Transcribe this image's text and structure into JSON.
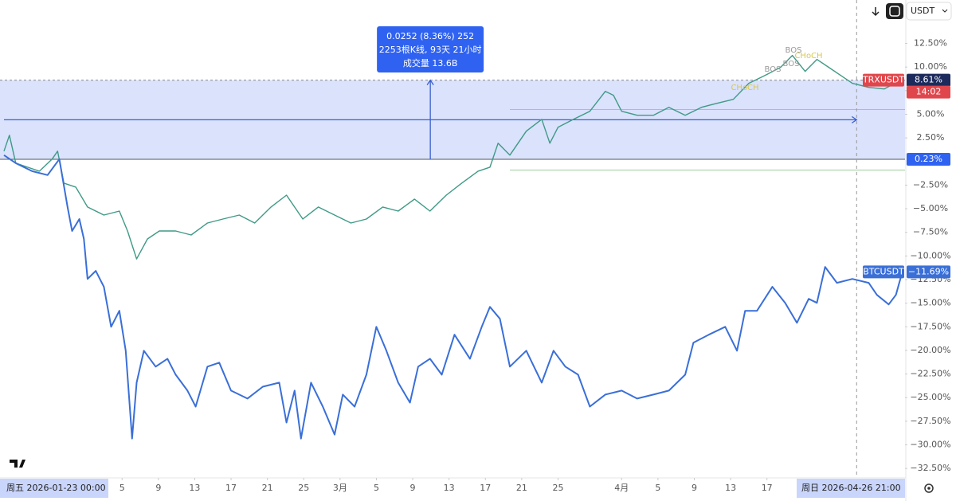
{
  "chart_data": {
    "type": "line",
    "xlim": [
      0,
      99.2
    ],
    "ylim": [
      -33.5,
      17.1
    ],
    "xticks": [
      {
        "value": 13,
        "label": "5"
      },
      {
        "value": 17,
        "label": "9"
      },
      {
        "value": 21,
        "label": "13"
      },
      {
        "value": 25,
        "label": "17"
      },
      {
        "value": 29,
        "label": "21"
      },
      {
        "value": 33,
        "label": "25"
      },
      {
        "value": 37,
        "label": "3月"
      },
      {
        "value": 41,
        "label": "5"
      },
      {
        "value": 45,
        "label": "9"
      },
      {
        "value": 49,
        "label": "13"
      },
      {
        "value": 53,
        "label": "17"
      },
      {
        "value": 57,
        "label": "21"
      },
      {
        "value": 61,
        "label": "25"
      },
      {
        "value": 68,
        "label": "4月"
      },
      {
        "value": 72,
        "label": "5"
      },
      {
        "value": 76,
        "label": "9"
      },
      {
        "value": 80,
        "label": "13"
      },
      {
        "value": 84,
        "label": "17"
      }
    ],
    "yticks": [
      {
        "value": 12.5,
        "label": "12.50%"
      },
      {
        "value": 10,
        "label": "10.00%"
      },
      {
        "value": 7.5,
        "label": "7.50%"
      },
      {
        "value": 5,
        "label": "5.00%"
      },
      {
        "value": 2.5,
        "label": "2.50%"
      },
      {
        "value": -2.5,
        "label": "−2.50%"
      },
      {
        "value": -5,
        "label": "−5.00%"
      },
      {
        "value": -7.5,
        "label": "−7.50%"
      },
      {
        "value": -10,
        "label": "−10.00%"
      },
      {
        "value": -12.5,
        "label": "−12.50%"
      },
      {
        "value": -15,
        "label": "−15.00%"
      },
      {
        "value": -17.5,
        "label": "−17.50%"
      },
      {
        "value": -20,
        "label": "−20.00%"
      },
      {
        "value": -22.5,
        "label": "−22.50%"
      },
      {
        "value": -25,
        "label": "−25.00%"
      },
      {
        "value": -27.5,
        "label": "−27.50%"
      },
      {
        "value": -30,
        "label": "−30.00%"
      },
      {
        "value": -32.5,
        "label": "−32.50%"
      }
    ],
    "grid": false,
    "crosshair_start": "周五 2026-01-23  00:00",
    "crosshair_end": {
      "value": 93.875,
      "label": "周日 2026-04-26  21:00"
    },
    "range_box": {
      "low": {
        "value": 0.23,
        "label": "0.23%"
      },
      "high": 8.61
    },
    "measure": [
      "0.0252 (8.36%) 252",
      "2253根K线, 93天 21小时",
      "成交量 13.6B"
    ],
    "countdown": "14:02",
    "currency": "USDT",
    "annotations": [
      "BOS",
      "BOS",
      "BOS",
      "CHoCH",
      "CHoCH"
    ],
    "series": [
      {
        "name": "TRXUSDT",
        "color": "#3f9a86",
        "label_color": "#e0474c",
        "last_label": "8.61%",
        "x": [
          0,
          0.6,
          1.3,
          2.6,
          3.9,
          5.3,
          5.9,
          6.6,
          7.9,
          9.2,
          11.0,
          12.7,
          13.6,
          14.6,
          15.8,
          17.1,
          18.9,
          20.6,
          22.4,
          24.1,
          25.9,
          27.6,
          29.4,
          31.1,
          32.9,
          34.6,
          36.4,
          38.2,
          39.9,
          41.7,
          43.4,
          45.2,
          46.9,
          48.7,
          50.4,
          52.2,
          53.5,
          54.4,
          55.7,
          57.5,
          59.2,
          60.1,
          61.0,
          62.7,
          64.5,
          66.2,
          67.1,
          68.0,
          69.7,
          71.5,
          73.2,
          75.0,
          76.8,
          78.5,
          80.3,
          82.0,
          83.8,
          85.5,
          86.8,
          88.2,
          89.5,
          90.8,
          92.1,
          93.4,
          95.2,
          96.9,
          98.7
        ],
        "values": [
          1.09,
          2.78,
          -0.17,
          -0.6,
          -1.02,
          0.25,
          1.09,
          -2.29,
          -2.71,
          -4.82,
          -5.67,
          -5.25,
          -7.36,
          -10.32,
          -8.2,
          -7.36,
          -7.36,
          -7.78,
          -6.51,
          -6.09,
          -5.67,
          -6.51,
          -4.82,
          -3.56,
          -6.09,
          -4.82,
          -5.67,
          -6.51,
          -6.09,
          -4.82,
          -5.25,
          -3.98,
          -5.25,
          -3.56,
          -2.29,
          -1.02,
          -0.6,
          1.94,
          0.67,
          3.21,
          4.47,
          1.94,
          3.63,
          4.47,
          5.32,
          7.43,
          7.01,
          5.32,
          4.9,
          4.9,
          5.74,
          4.9,
          5.74,
          6.16,
          6.58,
          8.28,
          9.12,
          9.97,
          11.23,
          9.54,
          10.81,
          9.97,
          9.12,
          8.28,
          7.85,
          7.68,
          8.61
        ]
      },
      {
        "name": "BTCUSDT",
        "color": "#3a6fd8",
        "label_color": "#3a6fd8",
        "last_label": "−11.69%",
        "x": [
          0,
          1.3,
          3.1,
          4.8,
          6.1,
          7.0,
          7.5,
          8.3,
          8.8,
          9.2,
          10.1,
          11.0,
          11.8,
          12.7,
          13.4,
          14.1,
          14.6,
          15.4,
          16.7,
          18.0,
          18.9,
          20.2,
          21.1,
          22.4,
          23.7,
          25.0,
          26.8,
          28.5,
          30.3,
          31.1,
          32.0,
          32.7,
          33.8,
          35.1,
          36.4,
          37.3,
          38.6,
          39.9,
          41.0,
          42.1,
          43.4,
          44.7,
          45.6,
          46.9,
          48.2,
          49.6,
          51.3,
          52.6,
          53.5,
          54.6,
          55.7,
          57.5,
          59.2,
          60.5,
          61.8,
          63.2,
          64.5,
          66.2,
          68.0,
          69.7,
          71.5,
          73.2,
          75.0,
          75.9,
          77.6,
          79.4,
          80.7,
          81.6,
          82.9,
          84.6,
          86.0,
          87.3,
          88.6,
          89.5,
          90.4,
          91.7,
          93.4,
          95.2,
          96.1,
          97.4,
          98.2,
          98.9
        ],
        "values": [
          0.67,
          -0.17,
          -1.02,
          -1.44,
          0.25,
          -4.82,
          -7.36,
          -6.09,
          -8.2,
          -12.43,
          -11.58,
          -13.27,
          -17.5,
          -15.81,
          -20.03,
          -29.33,
          -23.41,
          -20.03,
          -21.72,
          -20.88,
          -22.57,
          -24.26,
          -25.95,
          -21.72,
          -21.3,
          -24.26,
          -25.1,
          -23.84,
          -23.41,
          -27.64,
          -24.26,
          -29.33,
          -23.41,
          -25.95,
          -28.91,
          -24.68,
          -25.95,
          -22.57,
          -17.5,
          -20.03,
          -23.41,
          -25.53,
          -21.72,
          -20.88,
          -22.57,
          -18.34,
          -20.88,
          -17.5,
          -15.39,
          -16.65,
          -21.72,
          -20.03,
          -23.41,
          -20.03,
          -21.72,
          -22.57,
          -25.95,
          -24.68,
          -24.26,
          -25.1,
          -24.68,
          -24.26,
          -22.57,
          -19.19,
          -18.34,
          -17.5,
          -20.03,
          -15.81,
          -15.81,
          -13.27,
          -14.96,
          -17.08,
          -14.54,
          -14.96,
          -11.16,
          -12.85,
          -12.43,
          -12.85,
          -14.12,
          -15.13,
          -14.12,
          -11.69
        ]
      }
    ]
  }
}
